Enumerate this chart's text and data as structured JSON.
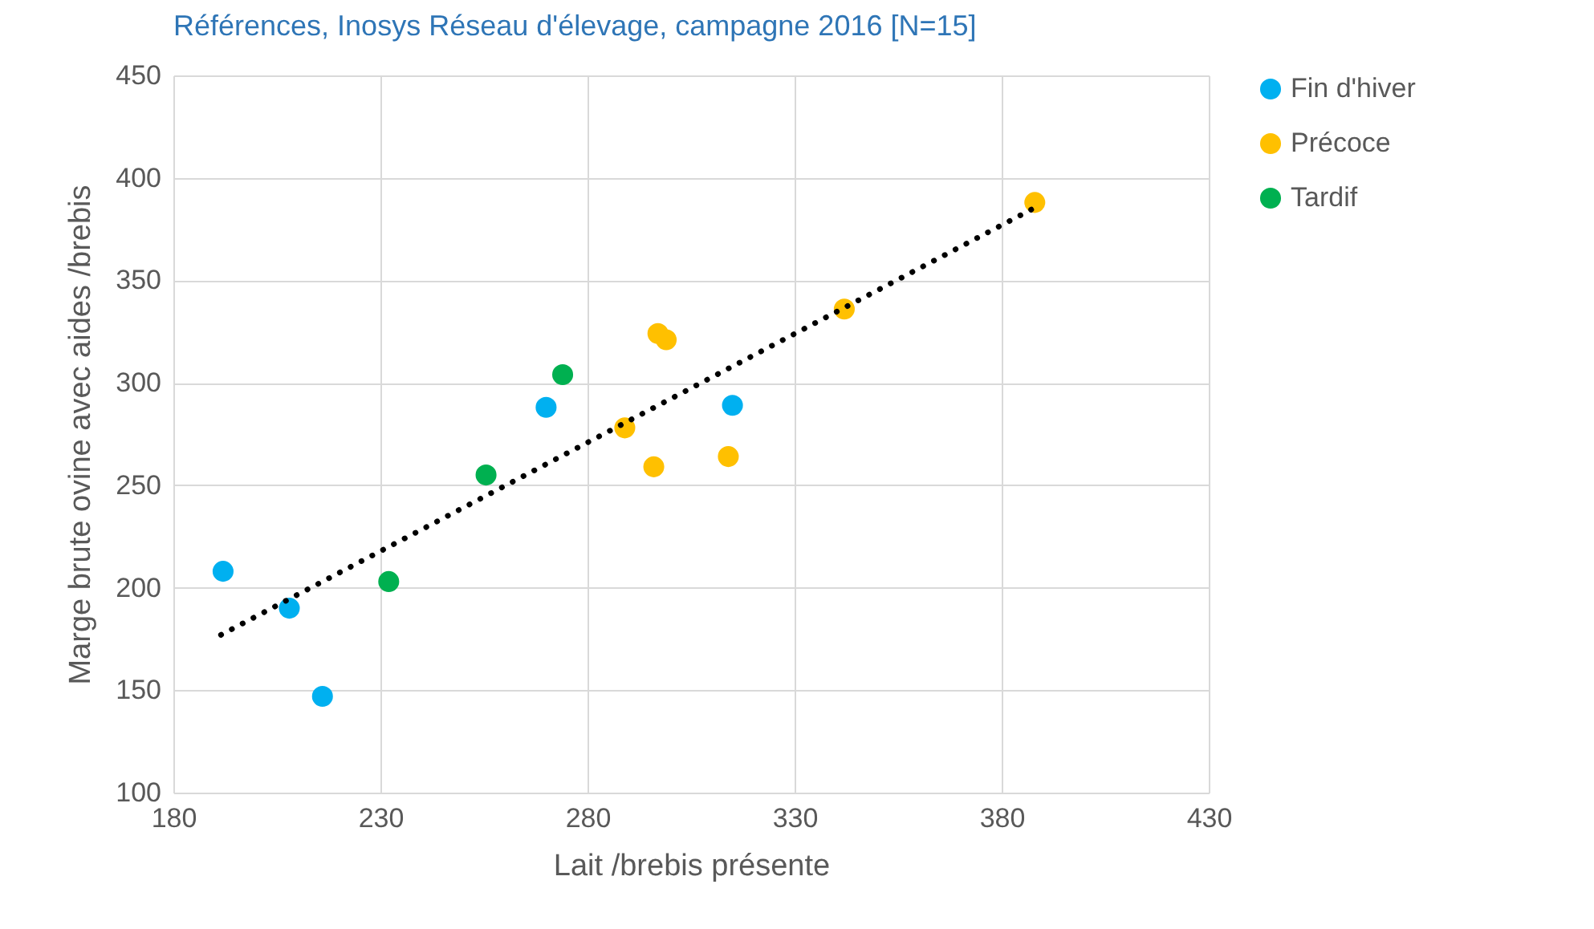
{
  "chart_data": {
    "type": "scatter",
    "title": "Références, Inosys Réseau d'élevage, campagne 2016 [N=15]",
    "xlabel": "Lait /brebis présente",
    "ylabel": "Marge brute ovine avec aides /brebis",
    "xlim": [
      180,
      430
    ],
    "xticks": [
      180,
      230,
      280,
      330,
      380,
      430
    ],
    "ylim": [
      100,
      450
    ],
    "yticks": [
      100,
      150,
      200,
      250,
      300,
      350,
      400,
      450
    ],
    "grid": true,
    "legend": "right",
    "marker": "circle",
    "series": [
      {
        "name": "Fin d'hiver",
        "color": "#00b0f0",
        "x": [
          192,
          208,
          216,
          270,
          315
        ],
        "values": [
          208,
          190,
          147,
          288,
          289
        ]
      },
      {
        "name": "Précoce",
        "color": "#ffc000",
        "x": [
          289,
          296,
          297,
          299,
          314,
          342,
          388
        ],
        "values": [
          278,
          259,
          324,
          321,
          264,
          336,
          388
        ]
      },
      {
        "name": "Tardif",
        "color": "#00b050",
        "x": [
          232,
          255.5,
          274
        ],
        "values": [
          203,
          255,
          304
        ]
      },
      {
        "type": "line",
        "color": "#000000",
        "line_style": "dotted",
        "marker": "none",
        "x": [
          191.5,
          387.6
        ],
        "values": [
          177,
          385
        ]
      }
    ]
  }
}
